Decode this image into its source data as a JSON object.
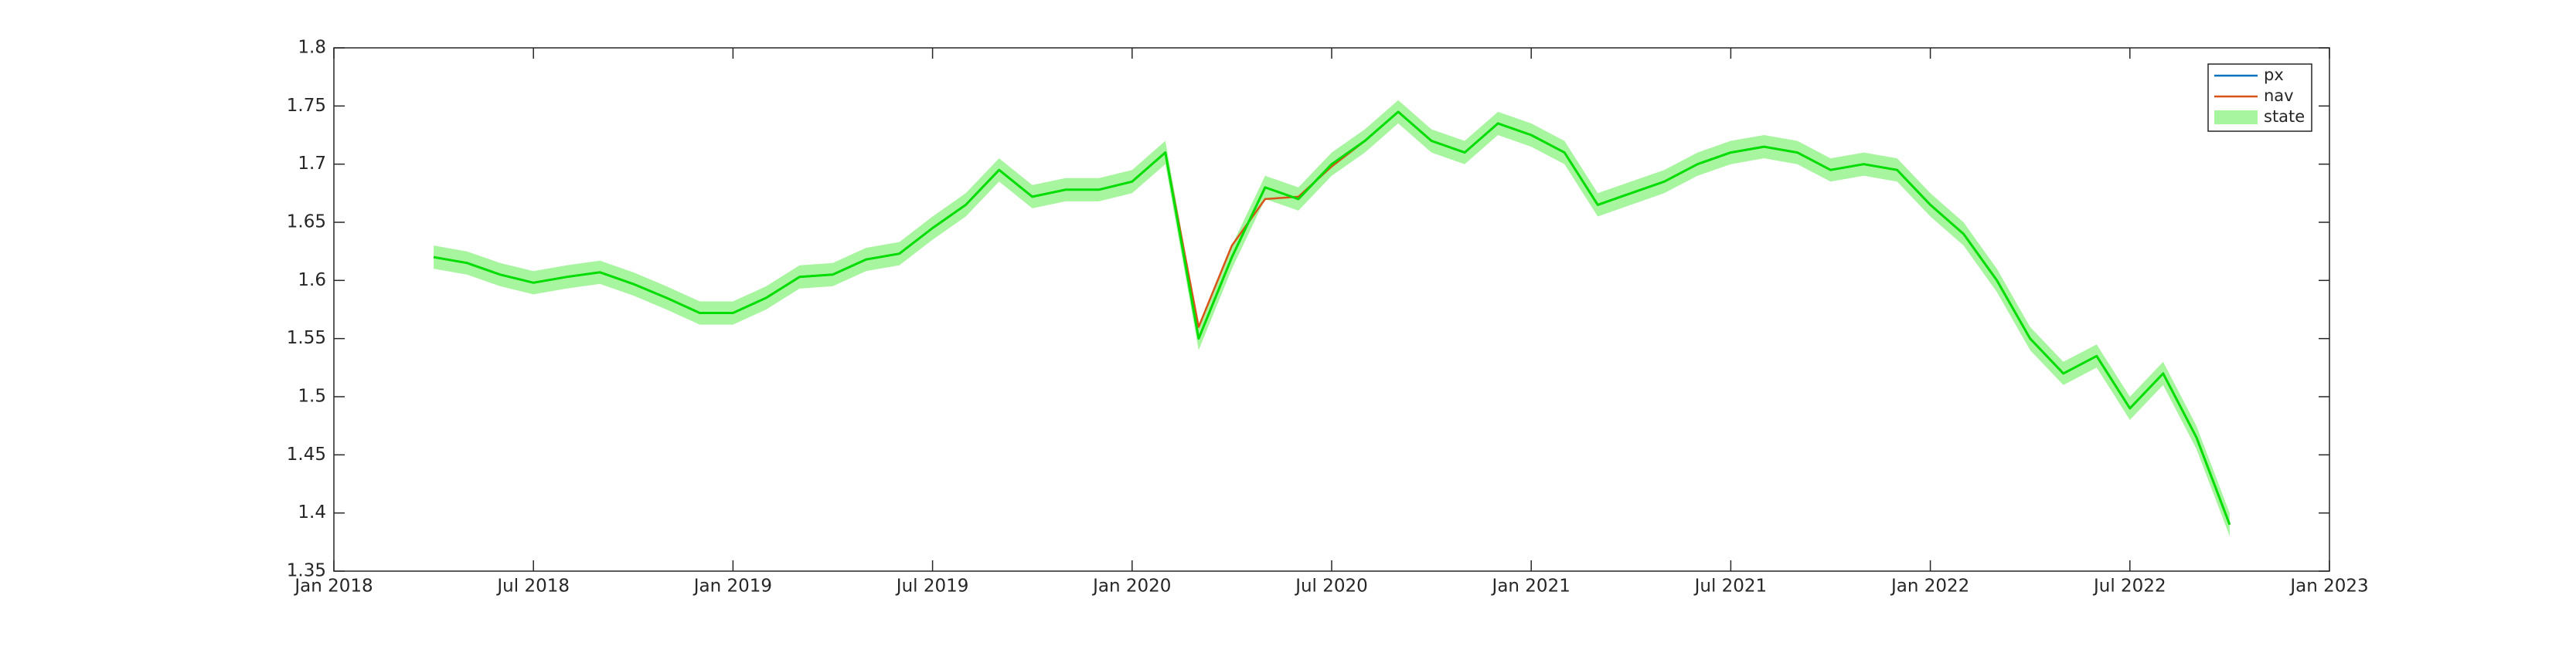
{
  "chart_data": {
    "type": "line",
    "x": [
      "2018-04",
      "2018-05",
      "2018-06",
      "2018-07",
      "2018-08",
      "2018-09",
      "2018-10",
      "2018-11",
      "2018-12",
      "2019-01",
      "2019-02",
      "2019-03",
      "2019-04",
      "2019-05",
      "2019-06",
      "2019-07",
      "2019-08",
      "2019-09",
      "2019-10",
      "2019-11",
      "2019-12",
      "2020-01",
      "2020-02",
      "2020-03",
      "2020-04",
      "2020-05",
      "2020-06",
      "2020-07",
      "2020-08",
      "2020-09",
      "2020-10",
      "2020-11",
      "2020-12",
      "2021-01",
      "2021-02",
      "2021-03",
      "2021-04",
      "2021-05",
      "2021-06",
      "2021-07",
      "2021-08",
      "2021-09",
      "2021-10",
      "2021-11",
      "2021-12",
      "2022-01",
      "2022-02",
      "2022-03",
      "2022-04",
      "2022-05",
      "2022-06",
      "2022-07",
      "2022-08",
      "2022-09",
      "2022-10"
    ],
    "series": [
      {
        "name": "px",
        "color": "#0072bd",
        "values": [
          1.62,
          1.615,
          1.605,
          1.598,
          1.603,
          1.607,
          1.597,
          1.585,
          1.572,
          1.572,
          1.585,
          1.603,
          1.605,
          1.618,
          1.623,
          1.645,
          1.665,
          1.695,
          1.672,
          1.678,
          1.678,
          1.685,
          1.71,
          1.55,
          1.62,
          1.68,
          1.67,
          1.7,
          1.72,
          1.745,
          1.72,
          1.71,
          1.735,
          1.725,
          1.71,
          1.665,
          1.675,
          1.685,
          1.7,
          1.71,
          1.715,
          1.71,
          1.695,
          1.7,
          1.695,
          1.665,
          1.64,
          1.6,
          1.55,
          1.52,
          1.535,
          1.49,
          1.52,
          1.465,
          1.39
        ]
      },
      {
        "name": "nav",
        "color": "#d95319",
        "values": [
          1.62,
          1.615,
          1.605,
          1.598,
          1.603,
          1.607,
          1.597,
          1.585,
          1.572,
          1.572,
          1.585,
          1.603,
          1.605,
          1.618,
          1.623,
          1.645,
          1.665,
          1.695,
          1.672,
          1.678,
          1.678,
          1.685,
          1.71,
          1.56,
          1.63,
          1.67,
          1.672,
          1.698,
          1.72,
          1.745,
          1.72,
          1.71,
          1.735,
          1.725,
          1.71,
          1.665,
          1.675,
          1.685,
          1.7,
          1.71,
          1.715,
          1.71,
          1.695,
          1.7,
          1.695,
          1.665,
          1.64,
          1.6,
          1.55,
          1.52,
          1.535,
          1.49,
          1.52,
          1.465,
          1.39
        ]
      },
      {
        "name": "state",
        "color": "#a8f5a0",
        "line_color": "#00dd00",
        "values": [
          1.62,
          1.615,
          1.605,
          1.598,
          1.603,
          1.607,
          1.597,
          1.585,
          1.572,
          1.572,
          1.585,
          1.603,
          1.605,
          1.618,
          1.623,
          1.645,
          1.665,
          1.695,
          1.672,
          1.678,
          1.678,
          1.685,
          1.71,
          1.55,
          1.62,
          1.68,
          1.67,
          1.7,
          1.72,
          1.745,
          1.72,
          1.71,
          1.735,
          1.725,
          1.71,
          1.665,
          1.675,
          1.685,
          1.7,
          1.71,
          1.715,
          1.71,
          1.695,
          1.7,
          1.695,
          1.665,
          1.64,
          1.6,
          1.55,
          1.52,
          1.535,
          1.49,
          1.52,
          1.465,
          1.39
        ],
        "lower": [
          1.61,
          1.605,
          1.595,
          1.588,
          1.593,
          1.597,
          1.587,
          1.575,
          1.562,
          1.562,
          1.575,
          1.593,
          1.595,
          1.608,
          1.613,
          1.635,
          1.655,
          1.685,
          1.662,
          1.668,
          1.668,
          1.675,
          1.7,
          1.54,
          1.61,
          1.67,
          1.66,
          1.69,
          1.71,
          1.735,
          1.71,
          1.7,
          1.725,
          1.715,
          1.7,
          1.655,
          1.665,
          1.675,
          1.69,
          1.7,
          1.705,
          1.7,
          1.685,
          1.69,
          1.685,
          1.655,
          1.63,
          1.59,
          1.54,
          1.51,
          1.525,
          1.48,
          1.51,
          1.455,
          1.38
        ],
        "upper": [
          1.63,
          1.625,
          1.615,
          1.608,
          1.613,
          1.617,
          1.607,
          1.595,
          1.582,
          1.582,
          1.595,
          1.613,
          1.615,
          1.628,
          1.633,
          1.655,
          1.675,
          1.705,
          1.682,
          1.688,
          1.688,
          1.695,
          1.72,
          1.56,
          1.63,
          1.69,
          1.68,
          1.71,
          1.73,
          1.755,
          1.73,
          1.72,
          1.745,
          1.735,
          1.72,
          1.675,
          1.685,
          1.695,
          1.71,
          1.72,
          1.725,
          1.72,
          1.705,
          1.71,
          1.705,
          1.675,
          1.65,
          1.61,
          1.56,
          1.53,
          1.545,
          1.5,
          1.53,
          1.475,
          1.4
        ]
      }
    ],
    "xlim": [
      "2018-01",
      "2023-01"
    ],
    "xticks": [
      {
        "value": "2018-01",
        "label": "Jan 2018"
      },
      {
        "value": "2018-07",
        "label": "Jul 2018"
      },
      {
        "value": "2019-01",
        "label": "Jan 2019"
      },
      {
        "value": "2019-07",
        "label": "Jul 2019"
      },
      {
        "value": "2020-01",
        "label": "Jan 2020"
      },
      {
        "value": "2020-07",
        "label": "Jul 2020"
      },
      {
        "value": "2021-01",
        "label": "Jan 2021"
      },
      {
        "value": "2021-07",
        "label": "Jul 2021"
      },
      {
        "value": "2022-01",
        "label": "Jan 2022"
      },
      {
        "value": "2022-07",
        "label": "Jul 2022"
      },
      {
        "value": "2023-01",
        "label": "Jan 2023"
      }
    ],
    "ylim": [
      1.35,
      1.8
    ],
    "yticks": [
      1.35,
      1.4,
      1.45,
      1.5,
      1.55,
      1.6,
      1.65,
      1.7,
      1.75,
      1.8
    ],
    "legend": "top-right"
  }
}
